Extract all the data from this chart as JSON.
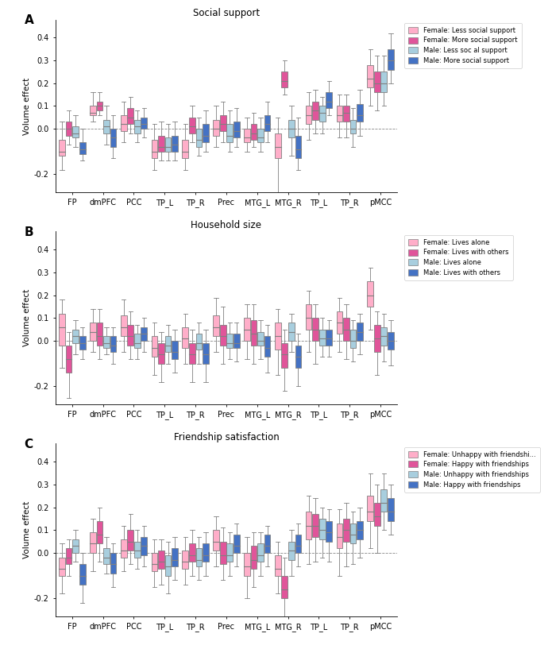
{
  "regions": [
    "FP",
    "dmPFC",
    "PCC",
    "TP_L",
    "TP_R",
    "Prec",
    "MTG_L",
    "MTG_R",
    "TP_L",
    "TP_R",
    "pMCC"
  ],
  "xlabels": [
    "FP",
    "dmPFC",
    "PCC",
    "TP_L",
    "TP_R",
    "Prec",
    "MTG_L",
    "MTG_R",
    "TP_L",
    "TP_R",
    "pMCC"
  ],
  "panel_titles": [
    "Social support",
    "Household size",
    "Friendship satisfaction"
  ],
  "panel_labels": [
    "A",
    "B",
    "C"
  ],
  "ylabel": "Volume effect",
  "ylim": [
    -0.28,
    0.48
  ],
  "yticks": [
    -0.2,
    0.0,
    0.1,
    0.2,
    0.3,
    0.4
  ],
  "ytick_labels": [
    "-0.2",
    "0.0",
    "0.1",
    "0.2",
    "0.3",
    "0.4"
  ],
  "colors": {
    "f1": "#FFAEC9",
    "f2": "#E0559A",
    "m1": "#A8CEDE",
    "m2": "#4472C4"
  },
  "legend_A": [
    "Female: Less social support",
    "Female: More social support",
    "Male: Less soc al support",
    "Male: More social support"
  ],
  "legend_B": [
    "Female: Lives alone",
    "Female: Lives with others",
    "Male: Lives alone",
    "Male: Lives with others"
  ],
  "legend_C": [
    "Female: Unhappy with friendshi...",
    "Female: Happy with friendships",
    "Male: Unhappy with friendships",
    "Male: Happy with friendships"
  ],
  "panel_A": {
    "FP": {
      "f1": [
        -0.18,
        -0.12,
        -0.1,
        -0.05,
        0.03
      ],
      "f2": [
        -0.07,
        -0.03,
        0.0,
        0.03,
        0.08
      ],
      "m1": [
        -0.08,
        -0.04,
        -0.02,
        0.01,
        0.06
      ],
      "m2": [
        -0.14,
        -0.11,
        -0.09,
        -0.06,
        0.0
      ]
    },
    "dmPFC": {
      "f1": [
        0.03,
        0.06,
        0.07,
        0.1,
        0.16
      ],
      "f2": [
        0.06,
        0.08,
        0.1,
        0.12,
        0.16
      ],
      "m1": [
        -0.07,
        -0.02,
        0.01,
        0.04,
        0.1
      ],
      "m2": [
        -0.13,
        -0.08,
        -0.04,
        0.0,
        0.06
      ]
    },
    "PCC": {
      "f1": [
        -0.06,
        -0.01,
        0.02,
        0.06,
        0.12
      ],
      "f2": [
        -0.02,
        0.02,
        0.05,
        0.09,
        0.14
      ],
      "m1": [
        -0.06,
        -0.02,
        0.01,
        0.04,
        0.08
      ],
      "m2": [
        -0.04,
        0.0,
        0.02,
        0.05,
        0.09
      ]
    },
    "TP_L": {
      "f1": [
        -0.18,
        -0.13,
        -0.1,
        -0.05,
        0.02
      ],
      "f2": [
        -0.14,
        -0.1,
        -0.08,
        -0.03,
        0.03
      ],
      "m1": [
        -0.14,
        -0.1,
        -0.08,
        -0.04,
        0.02
      ],
      "m2": [
        -0.14,
        -0.1,
        -0.07,
        -0.03,
        0.03
      ]
    },
    "TP_R": {
      "f1": [
        -0.18,
        -0.13,
        -0.1,
        -0.05,
        0.02
      ],
      "f2": [
        -0.06,
        -0.02,
        0.01,
        0.05,
        0.1
      ],
      "m1": [
        -0.12,
        -0.08,
        -0.05,
        0.0,
        0.05
      ],
      "m2": [
        -0.1,
        -0.06,
        -0.03,
        0.02,
        0.08
      ]
    },
    "Prec": {
      "f1": [
        -0.08,
        -0.03,
        0.0,
        0.04,
        0.1
      ],
      "f2": [
        -0.06,
        -0.01,
        0.02,
        0.06,
        0.12
      ],
      "m1": [
        -0.1,
        -0.06,
        -0.03,
        0.02,
        0.08
      ],
      "m2": [
        -0.08,
        -0.04,
        -0.01,
        0.03,
        0.09
      ]
    },
    "MTG_L": {
      "f1": [
        -0.1,
        -0.06,
        -0.04,
        0.0,
        0.05
      ],
      "f2": [
        -0.08,
        -0.05,
        -0.02,
        0.02,
        0.07
      ],
      "m1": [
        -0.1,
        -0.06,
        -0.04,
        0.0,
        0.05
      ],
      "m2": [
        -0.06,
        -0.01,
        0.02,
        0.06,
        0.12
      ]
    },
    "MTG_R": {
      "f1": [
        -0.3,
        -0.13,
        -0.08,
        -0.02,
        0.05
      ],
      "f2": [
        0.15,
        0.18,
        0.21,
        0.25,
        0.3
      ],
      "m1": [
        -0.12,
        -0.04,
        0.0,
        0.04,
        0.1
      ],
      "m2": [
        -0.18,
        -0.13,
        -0.09,
        -0.03,
        0.05
      ]
    },
    "TP_L2": {
      "f1": [
        -0.05,
        0.02,
        0.06,
        0.1,
        0.16
      ],
      "f2": [
        -0.02,
        0.04,
        0.08,
        0.12,
        0.17
      ],
      "m1": [
        -0.02,
        0.03,
        0.07,
        0.1,
        0.14
      ],
      "m2": [
        0.06,
        0.09,
        0.12,
        0.16,
        0.21
      ]
    },
    "TP_R2": {
      "f1": [
        -0.04,
        0.03,
        0.06,
        0.1,
        0.15
      ],
      "f2": [
        -0.04,
        0.03,
        0.07,
        0.1,
        0.15
      ],
      "m1": [
        -0.08,
        -0.02,
        0.0,
        0.04,
        0.09
      ],
      "m2": [
        -0.03,
        0.03,
        0.06,
        0.11,
        0.17
      ]
    },
    "pMCC": {
      "f1": [
        0.1,
        0.18,
        0.22,
        0.28,
        0.35
      ],
      "f2": [
        0.08,
        0.16,
        0.2,
        0.25,
        0.32
      ],
      "m1": [
        0.1,
        0.16,
        0.2,
        0.25,
        0.32
      ],
      "m2": [
        0.2,
        0.26,
        0.3,
        0.35,
        0.42
      ]
    }
  },
  "panel_B": {
    "FP": {
      "f1": [
        -0.12,
        -0.02,
        0.06,
        0.12,
        0.18
      ],
      "f2": [
        -0.25,
        -0.14,
        -0.08,
        -0.02,
        0.04
      ],
      "m1": [
        -0.06,
        -0.01,
        0.02,
        0.05,
        0.09
      ],
      "m2": [
        -0.08,
        -0.04,
        -0.01,
        0.02,
        0.06
      ]
    },
    "dmPFC": {
      "f1": [
        -0.05,
        0.0,
        0.04,
        0.08,
        0.14
      ],
      "f2": [
        -0.08,
        -0.02,
        0.02,
        0.08,
        0.14
      ],
      "m1": [
        -0.06,
        -0.03,
        -0.01,
        0.02,
        0.06
      ],
      "m2": [
        -0.1,
        -0.05,
        -0.02,
        0.02,
        0.06
      ]
    },
    "PCC": {
      "f1": [
        -0.05,
        0.02,
        0.06,
        0.11,
        0.18
      ],
      "f2": [
        -0.08,
        -0.02,
        0.02,
        0.07,
        0.13
      ],
      "m1": [
        -0.08,
        -0.03,
        -0.01,
        0.03,
        0.07
      ],
      "m2": [
        -0.05,
        0.0,
        0.03,
        0.06,
        0.1
      ]
    },
    "TP_L": {
      "f1": [
        -0.15,
        -0.07,
        -0.03,
        0.02,
        0.08
      ],
      "f2": [
        -0.18,
        -0.1,
        -0.06,
        -0.01,
        0.04
      ],
      "m1": [
        -0.1,
        -0.05,
        -0.02,
        0.02,
        0.07
      ],
      "m2": [
        -0.14,
        -0.08,
        -0.05,
        0.0,
        0.05
      ]
    },
    "TP_R": {
      "f1": [
        -0.1,
        -0.03,
        0.01,
        0.06,
        0.12
      ],
      "f2": [
        -0.18,
        -0.1,
        -0.06,
        -0.01,
        0.05
      ],
      "m1": [
        -0.1,
        -0.04,
        -0.01,
        0.03,
        0.08
      ],
      "m2": [
        -0.18,
        -0.1,
        -0.06,
        -0.01,
        0.05
      ]
    },
    "Prec": {
      "f1": [
        -0.05,
        0.02,
        0.06,
        0.11,
        0.19
      ],
      "f2": [
        -0.1,
        -0.02,
        0.02,
        0.07,
        0.15
      ],
      "m1": [
        -0.08,
        -0.03,
        -0.01,
        0.03,
        0.08
      ],
      "m2": [
        -0.09,
        -0.03,
        -0.01,
        0.03,
        0.08
      ]
    },
    "MTG_L": {
      "f1": [
        -0.08,
        0.0,
        0.05,
        0.1,
        0.16
      ],
      "f2": [
        -0.1,
        -0.02,
        0.03,
        0.09,
        0.16
      ],
      "m1": [
        -0.08,
        -0.02,
        0.0,
        0.04,
        0.09
      ],
      "m2": [
        -0.14,
        -0.07,
        -0.03,
        0.02,
        0.07
      ]
    },
    "MTG_R": {
      "f1": [
        -0.15,
        -0.04,
        0.02,
        0.08,
        0.14
      ],
      "f2": [
        -0.22,
        -0.12,
        -0.06,
        -0.01,
        0.05
      ],
      "m1": [
        -0.05,
        0.0,
        0.04,
        0.08,
        0.12
      ],
      "m2": [
        -0.2,
        -0.12,
        -0.07,
        -0.02,
        0.03
      ]
    },
    "TP_L2": {
      "f1": [
        -0.05,
        0.05,
        0.1,
        0.16,
        0.22
      ],
      "f2": [
        -0.1,
        0.0,
        0.05,
        0.1,
        0.16
      ],
      "m1": [
        -0.07,
        -0.02,
        0.01,
        0.05,
        0.1
      ],
      "m2": [
        -0.07,
        -0.02,
        0.01,
        0.05,
        0.09
      ]
    },
    "TP_R2": {
      "f1": [
        -0.05,
        0.03,
        0.08,
        0.13,
        0.19
      ],
      "f2": [
        -0.08,
        0.0,
        0.05,
        0.1,
        0.16
      ],
      "m1": [
        -0.09,
        -0.03,
        0.0,
        0.05,
        0.09
      ],
      "m2": [
        -0.06,
        0.0,
        0.04,
        0.08,
        0.12
      ]
    },
    "pMCC": {
      "f1": [
        0.05,
        0.15,
        0.2,
        0.26,
        0.32
      ],
      "f2": [
        -0.15,
        -0.05,
        0.01,
        0.07,
        0.13
      ],
      "m1": [
        -0.09,
        -0.02,
        0.02,
        0.06,
        0.12
      ],
      "m2": [
        -0.11,
        -0.04,
        0.0,
        0.04,
        0.09
      ]
    }
  },
  "panel_C": {
    "FP": {
      "f1": [
        -0.18,
        -0.1,
        -0.07,
        -0.02,
        0.04
      ],
      "f2": [
        -0.1,
        -0.05,
        -0.02,
        0.02,
        0.06
      ],
      "m1": [
        -0.04,
        0.0,
        0.03,
        0.06,
        0.1
      ],
      "m2": [
        -0.22,
        -0.14,
        -0.1,
        -0.05,
        0.0
      ]
    },
    "dmPFC": {
      "f1": [
        -0.08,
        0.0,
        0.04,
        0.09,
        0.15
      ],
      "f2": [
        -0.04,
        0.04,
        0.08,
        0.14,
        0.2
      ],
      "m1": [
        -0.09,
        -0.05,
        -0.02,
        0.02,
        0.07
      ],
      "m2": [
        -0.15,
        -0.09,
        -0.05,
        0.0,
        0.04
      ]
    },
    "PCC": {
      "f1": [
        -0.08,
        -0.02,
        0.01,
        0.06,
        0.12
      ],
      "f2": [
        -0.05,
        0.01,
        0.05,
        0.1,
        0.17
      ],
      "m1": [
        -0.07,
        -0.02,
        0.01,
        0.05,
        0.1
      ],
      "m2": [
        -0.06,
        -0.01,
        0.03,
        0.07,
        0.12
      ]
    },
    "TP_L": {
      "f1": [
        -0.15,
        -0.08,
        -0.05,
        0.0,
        0.06
      ],
      "f2": [
        -0.14,
        -0.07,
        -0.04,
        0.01,
        0.06
      ],
      "m1": [
        -0.18,
        -0.1,
        -0.06,
        -0.01,
        0.05
      ],
      "m2": [
        -0.12,
        -0.06,
        -0.03,
        0.02,
        0.07
      ]
    },
    "TP_R": {
      "f1": [
        -0.14,
        -0.07,
        -0.04,
        0.01,
        0.07
      ],
      "f2": [
        -0.1,
        -0.04,
        -0.01,
        0.04,
        0.1
      ],
      "m1": [
        -0.12,
        -0.06,
        -0.03,
        0.02,
        0.07
      ],
      "m2": [
        -0.1,
        -0.04,
        -0.01,
        0.04,
        0.09
      ]
    },
    "Prec": {
      "f1": [
        -0.06,
        0.01,
        0.05,
        0.1,
        0.16
      ],
      "f2": [
        -0.12,
        -0.05,
        -0.01,
        0.05,
        0.11
      ],
      "m1": [
        -0.1,
        -0.04,
        -0.01,
        0.04,
        0.09
      ],
      "m2": [
        -0.06,
        0.0,
        0.03,
        0.08,
        0.13
      ]
    },
    "MTG_L": {
      "f1": [
        -0.2,
        -0.1,
        -0.06,
        0.0,
        0.07
      ],
      "f2": [
        -0.15,
        -0.07,
        -0.03,
        0.03,
        0.09
      ],
      "m1": [
        -0.1,
        -0.04,
        -0.01,
        0.04,
        0.09
      ],
      "m2": [
        -0.06,
        0.0,
        0.03,
        0.08,
        0.12
      ]
    },
    "MTG_R": {
      "f1": [
        -0.18,
        -0.1,
        -0.07,
        -0.01,
        0.05
      ],
      "f2": [
        -0.28,
        -0.2,
        -0.16,
        -0.1,
        -0.02
      ],
      "m1": [
        -0.1,
        -0.03,
        0.01,
        0.05,
        0.1
      ],
      "m2": [
        -0.06,
        0.0,
        0.03,
        0.08,
        0.13
      ]
    },
    "TP_L2": {
      "f1": [
        -0.05,
        0.06,
        0.12,
        0.18,
        0.25
      ],
      "f2": [
        -0.04,
        0.07,
        0.12,
        0.17,
        0.24
      ],
      "m1": [
        -0.02,
        0.06,
        0.1,
        0.15,
        0.2
      ],
      "m2": [
        -0.04,
        0.05,
        0.09,
        0.14,
        0.19
      ]
    },
    "TP_R2": {
      "f1": [
        -0.1,
        0.02,
        0.07,
        0.13,
        0.19
      ],
      "f2": [
        -0.06,
        0.05,
        0.1,
        0.15,
        0.22
      ],
      "m1": [
        -0.05,
        0.04,
        0.08,
        0.13,
        0.18
      ],
      "m2": [
        -0.02,
        0.06,
        0.1,
        0.14,
        0.2
      ]
    },
    "pMCC": {
      "f1": [
        0.02,
        0.14,
        0.18,
        0.25,
        0.35
      ],
      "f2": [
        0.0,
        0.12,
        0.16,
        0.22,
        0.3
      ],
      "m1": [
        0.1,
        0.18,
        0.22,
        0.28,
        0.35
      ],
      "m2": [
        0.08,
        0.14,
        0.18,
        0.24,
        0.3
      ]
    }
  }
}
